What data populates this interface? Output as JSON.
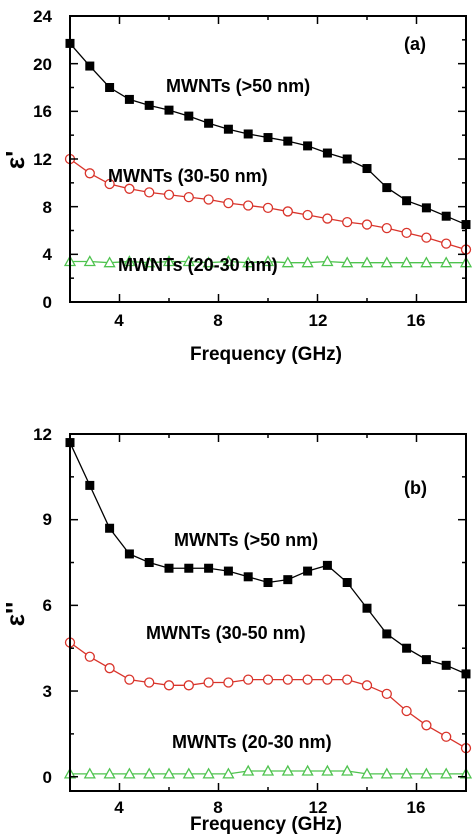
{
  "chart_data": [
    {
      "type": "line",
      "panel_label": "(a)",
      "xlabel": "Frequency (GHz)",
      "ylabel": "ε'",
      "xlim": [
        2,
        18
      ],
      "ylim": [
        0,
        24
      ],
      "xticks": [
        4,
        8,
        12,
        16
      ],
      "yticks": [
        0,
        4,
        8,
        12,
        16,
        20,
        24
      ],
      "grid": false,
      "series": [
        {
          "name": "MWNTs (>50 nm)",
          "marker": "square-filled",
          "color": "#000000",
          "x": [
            2,
            2.8,
            3.6,
            4.4,
            5.2,
            6.0,
            6.8,
            7.6,
            8.4,
            9.2,
            10.0,
            10.8,
            11.6,
            12.4,
            13.2,
            14.0,
            14.8,
            15.6,
            16.4,
            17.2,
            18.0
          ],
          "y": [
            21.7,
            19.8,
            18.0,
            17.0,
            16.5,
            16.1,
            15.6,
            15.0,
            14.5,
            14.1,
            13.8,
            13.5,
            13.1,
            12.5,
            12.0,
            11.2,
            9.6,
            8.5,
            7.9,
            7.2,
            6.5
          ]
        },
        {
          "name": "MWNTs (30-50 nm)",
          "marker": "circle-open",
          "color": "#d9342b",
          "x": [
            2,
            2.8,
            3.6,
            4.4,
            5.2,
            6.0,
            6.8,
            7.6,
            8.4,
            9.2,
            10.0,
            10.8,
            11.6,
            12.4,
            13.2,
            14.0,
            14.8,
            15.6,
            16.4,
            17.2,
            18.0
          ],
          "y": [
            12.0,
            10.8,
            9.9,
            9.5,
            9.2,
            9.0,
            8.8,
            8.6,
            8.3,
            8.1,
            7.9,
            7.6,
            7.3,
            7.0,
            6.7,
            6.5,
            6.2,
            5.8,
            5.4,
            4.9,
            4.4
          ]
        },
        {
          "name": "MWNTs (20-30 nm)",
          "marker": "triangle-open",
          "color": "#4fc34f",
          "x": [
            2,
            2.8,
            3.6,
            4.4,
            5.2,
            6.0,
            6.8,
            7.6,
            8.4,
            9.2,
            10.0,
            10.8,
            11.6,
            12.4,
            13.2,
            14.0,
            14.8,
            15.6,
            16.4,
            17.2,
            18.0
          ],
          "y": [
            3.4,
            3.4,
            3.3,
            3.4,
            3.3,
            3.4,
            3.4,
            3.3,
            3.4,
            3.3,
            3.4,
            3.3,
            3.3,
            3.4,
            3.3,
            3.3,
            3.3,
            3.3,
            3.3,
            3.3,
            3.3
          ]
        }
      ]
    },
    {
      "type": "line",
      "panel_label": "(b)",
      "xlabel": "Frequency (GHz)",
      "ylabel": "ε''",
      "xlim": [
        2,
        18
      ],
      "ylim": [
        -0.5,
        12
      ],
      "xticks": [
        4,
        8,
        12,
        16
      ],
      "yticks": [
        0,
        3,
        6,
        9,
        12
      ],
      "grid": false,
      "series": [
        {
          "name": "MWNTs (>50 nm)",
          "marker": "square-filled",
          "color": "#000000",
          "x": [
            2,
            2.8,
            3.6,
            4.4,
            5.2,
            6.0,
            6.8,
            7.6,
            8.4,
            9.2,
            10.0,
            10.8,
            11.6,
            12.4,
            13.2,
            14.0,
            14.8,
            15.6,
            16.4,
            17.2,
            18.0
          ],
          "y": [
            11.7,
            10.2,
            8.7,
            7.8,
            7.5,
            7.3,
            7.3,
            7.3,
            7.2,
            7.0,
            6.8,
            6.9,
            7.2,
            7.4,
            6.8,
            5.9,
            5.0,
            4.5,
            4.1,
            3.9,
            3.6
          ]
        },
        {
          "name": "MWNTs (30-50 nm)",
          "marker": "circle-open",
          "color": "#d9342b",
          "x": [
            2,
            2.8,
            3.6,
            4.4,
            5.2,
            6.0,
            6.8,
            7.6,
            8.4,
            9.2,
            10.0,
            10.8,
            11.6,
            12.4,
            13.2,
            14.0,
            14.8,
            15.6,
            16.4,
            17.2,
            18.0
          ],
          "y": [
            4.7,
            4.2,
            3.8,
            3.4,
            3.3,
            3.2,
            3.2,
            3.3,
            3.3,
            3.4,
            3.4,
            3.4,
            3.4,
            3.4,
            3.4,
            3.2,
            2.9,
            2.3,
            1.8,
            1.4,
            1.0
          ]
        },
        {
          "name": "MWNTs (20-30 nm)",
          "marker": "triangle-open",
          "color": "#4fc34f",
          "x": [
            2,
            2.8,
            3.6,
            4.4,
            5.2,
            6.0,
            6.8,
            7.6,
            8.4,
            9.2,
            10.0,
            10.8,
            11.6,
            12.4,
            13.2,
            14.0,
            14.8,
            15.6,
            16.4,
            17.2,
            18.0
          ],
          "y": [
            0.1,
            0.1,
            0.1,
            0.1,
            0.1,
            0.1,
            0.1,
            0.1,
            0.1,
            0.2,
            0.2,
            0.2,
            0.2,
            0.2,
            0.2,
            0.1,
            0.1,
            0.1,
            0.1,
            0.1,
            0.1
          ]
        }
      ]
    }
  ]
}
